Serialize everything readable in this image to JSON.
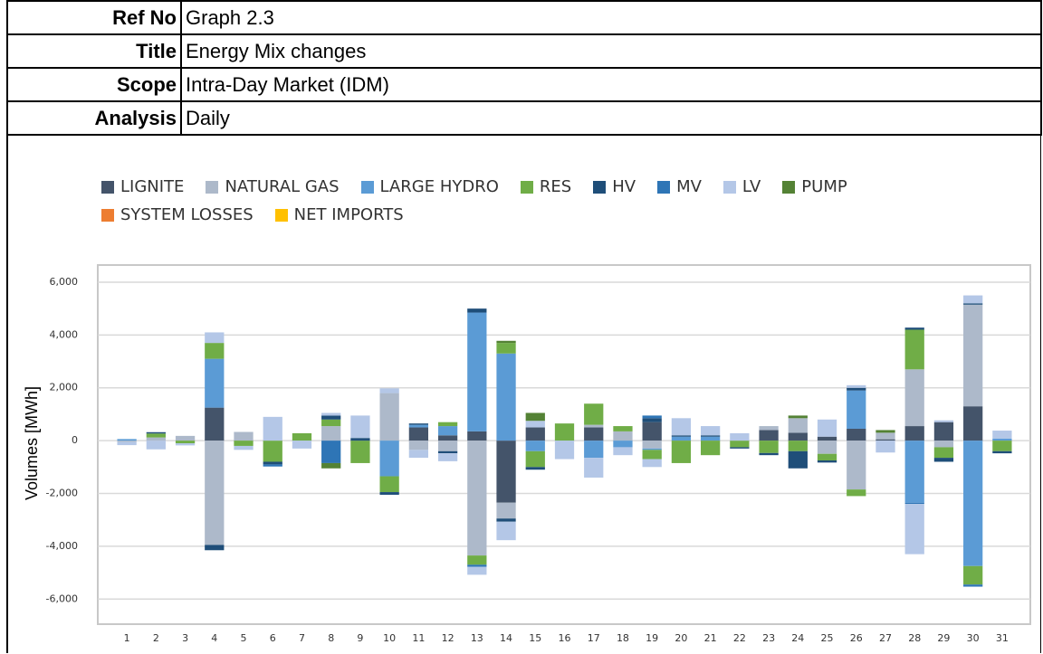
{
  "header": {
    "rows": [
      [
        "Ref No",
        "Graph 2.3"
      ],
      [
        "Title",
        "Energy Mix changes"
      ],
      [
        "Scope",
        "Intra-Day Market (IDM)"
      ],
      [
        "Analysis",
        "Daily"
      ]
    ]
  },
  "chart_data": {
    "type": "stacked-bar",
    "y_label": "Volumes [MWh]",
    "categories": [
      "1",
      "2",
      "3",
      "4",
      "5",
      "6",
      "7",
      "8",
      "9",
      "10",
      "11",
      "12",
      "13",
      "14",
      "15",
      "16",
      "17",
      "18",
      "19",
      "20",
      "21",
      "22",
      "23",
      "24",
      "25",
      "26",
      "27",
      "28",
      "29",
      "30",
      "31"
    ],
    "ylim": [
      -6950,
      6650
    ],
    "yticks": [
      {
        "value": -6000,
        "label": "-6,000"
      },
      {
        "value": -4000,
        "label": "-4,000"
      },
      {
        "value": -2000,
        "label": "-2,000"
      },
      0,
      {
        "value": 2000,
        "label": "2,000"
      },
      {
        "value": 4000,
        "label": "4,000"
      },
      {
        "value": 6000,
        "label": "6,000"
      }
    ],
    "grid": true,
    "series": [
      {
        "name": "LIGNITE",
        "color": "#44546a",
        "values": [
          0,
          0,
          0,
          1250,
          0,
          0,
          0,
          0,
          0,
          0,
          500,
          200,
          350,
          -2350,
          500,
          0,
          500,
          0,
          700,
          0,
          0,
          0,
          400,
          300,
          150,
          450,
          50,
          550,
          700,
          1300,
          0
        ]
      },
      {
        "name": "NATURAL GAS",
        "color": "#adb9ca",
        "values": [
          -50,
          120,
          180,
          -3950,
          330,
          0,
          0,
          550,
          0,
          1800,
          -350,
          -400,
          -4350,
          -600,
          0,
          0,
          100,
          350,
          -300,
          0,
          0,
          0,
          150,
          550,
          -500,
          -1850,
          250,
          2150,
          -250,
          3850,
          0
        ]
      },
      {
        "name": "LARGE HYDRO",
        "color": "#5b9bd5",
        "values": [
          60,
          0,
          0,
          1850,
          0,
          0,
          0,
          0,
          0,
          -1350,
          100,
          350,
          4500,
          3300,
          -400,
          0,
          -650,
          -250,
          -50,
          150,
          150,
          0,
          0,
          0,
          0,
          1450,
          0,
          -2350,
          0,
          -4750,
          80
        ]
      },
      {
        "name": "RES",
        "color": "#70ad47",
        "values": [
          0,
          150,
          -100,
          600,
          -200,
          -800,
          280,
          250,
          -850,
          -600,
          0,
          150,
          -350,
          400,
          -600,
          650,
          800,
          200,
          -350,
          -850,
          -550,
          -250,
          -470,
          -400,
          -250,
          -250,
          0,
          1500,
          -400,
          -700,
          -400
        ]
      },
      {
        "name": "HV",
        "color": "#1f4e79",
        "values": [
          0,
          50,
          0,
          -200,
          0,
          -100,
          0,
          150,
          100,
          -100,
          50,
          -80,
          150,
          -120,
          -100,
          0,
          0,
          0,
          150,
          50,
          50,
          -50,
          -80,
          -650,
          -80,
          100,
          0,
          80,
          -150,
          50,
          -80
        ]
      },
      {
        "name": "MV",
        "color": "#2e75b6",
        "values": [
          0,
          0,
          0,
          0,
          0,
          -80,
          0,
          -850,
          0,
          0,
          0,
          0,
          -80,
          0,
          0,
          0,
          0,
          0,
          100,
          0,
          0,
          0,
          0,
          0,
          0,
          0,
          0,
          -50,
          0,
          -80,
          0
        ]
      },
      {
        "name": "LV",
        "color": "#b4c7e7",
        "values": [
          -120,
          -330,
          -80,
          400,
          -150,
          900,
          -300,
          100,
          850,
          180,
          -300,
          -300,
          -300,
          -700,
          250,
          -700,
          -750,
          -300,
          -300,
          650,
          350,
          280,
          0,
          0,
          650,
          100,
          -450,
          -1900,
          70,
          300,
          300
        ]
      },
      {
        "name": "PUMP",
        "color": "#548235",
        "values": [
          0,
          0,
          0,
          0,
          0,
          0,
          0,
          -200,
          0,
          0,
          0,
          0,
          0,
          80,
          300,
          0,
          0,
          0,
          0,
          0,
          0,
          0,
          0,
          100,
          0,
          0,
          100,
          0,
          0,
          0,
          0
        ]
      },
      {
        "name": "SYSTEM LOSSES",
        "color": "#ed7d31",
        "values": [
          0,
          0,
          0,
          0,
          0,
          0,
          0,
          0,
          0,
          0,
          0,
          0,
          0,
          0,
          0,
          0,
          0,
          0,
          0,
          0,
          0,
          0,
          0,
          0,
          0,
          0,
          0,
          0,
          0,
          0,
          0
        ]
      },
      {
        "name": "NET IMPORTS",
        "color": "#ffc000",
        "values": [
          0,
          0,
          0,
          0,
          0,
          0,
          0,
          0,
          0,
          0,
          0,
          0,
          0,
          0,
          0,
          0,
          0,
          0,
          0,
          0,
          0,
          0,
          0,
          0,
          0,
          0,
          0,
          0,
          0,
          0,
          0
        ]
      }
    ]
  }
}
